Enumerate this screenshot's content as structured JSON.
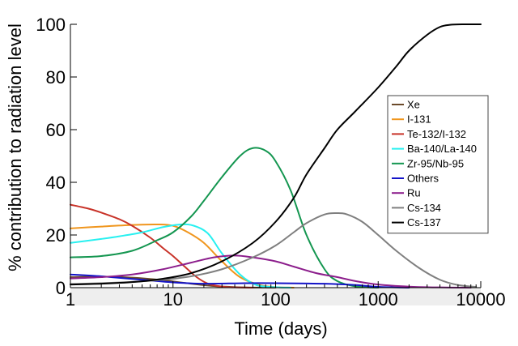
{
  "chart_data": {
    "type": "line",
    "title": "",
    "xlabel": "Time (days)",
    "ylabel": "% contribution to radiation level",
    "xscale": "log",
    "xlim": [
      1,
      10000
    ],
    "ylim": [
      0,
      100
    ],
    "xticks": [
      {
        "value": 1,
        "label": "1"
      },
      {
        "value": 10,
        "label": "10"
      },
      {
        "value": 100,
        "label": "100"
      },
      {
        "value": 1000,
        "label": "1000"
      },
      {
        "value": 10000,
        "label": "10000"
      }
    ],
    "yticks": [
      {
        "value": 0,
        "label": "0"
      },
      {
        "value": 20,
        "label": "20"
      },
      {
        "value": 40,
        "label": "40"
      },
      {
        "value": 60,
        "label": "60"
      },
      {
        "value": 80,
        "label": "80"
      },
      {
        "value": 100,
        "label": "100"
      }
    ],
    "legend_position": "right",
    "series": [
      {
        "name": "Xe",
        "color": "#6b4a2a",
        "x": [
          1,
          2,
          4,
          8,
          15,
          25,
          40,
          60,
          100
        ],
        "y": [
          4,
          4.2,
          3.8,
          2.8,
          1.5,
          0.6,
          0.2,
          0.05,
          0
        ]
      },
      {
        "name": "I-131",
        "color": "#f0961e",
        "x": [
          1,
          2,
          4,
          7,
          10,
          14,
          20,
          30,
          45,
          70,
          100,
          150
        ],
        "y": [
          22.5,
          23.2,
          23.8,
          24,
          23.5,
          21,
          17,
          10,
          4,
          1,
          0.2,
          0
        ]
      },
      {
        "name": "Te-132/I-132",
        "color": "#c83228",
        "x": [
          1,
          1.5,
          2,
          3,
          4,
          6,
          8,
          10,
          13,
          17,
          22,
          30,
          40,
          60
        ],
        "y": [
          31.5,
          30,
          28.5,
          26,
          23.5,
          19,
          15,
          12,
          8,
          4,
          1.5,
          0.4,
          0.1,
          0
        ]
      },
      {
        "name": "Ba-140/La-140",
        "color": "#28f0f0",
        "x": [
          1,
          2,
          3,
          5,
          8,
          12,
          16,
          22,
          30,
          45,
          65,
          100,
          140
        ],
        "y": [
          17,
          18.5,
          19.5,
          21,
          23,
          24,
          23.5,
          20.5,
          13,
          5,
          1,
          0.2,
          0
        ]
      },
      {
        "name": "Zr-95/Nb-95",
        "color": "#149650",
        "x": [
          1,
          2,
          4,
          7,
          10,
          15,
          20,
          30,
          45,
          60,
          80,
          100,
          140,
          200,
          300,
          400,
          600,
          1000
        ],
        "y": [
          11.5,
          12,
          14,
          18,
          21,
          27,
          33,
          42,
          50,
          53,
          52,
          48,
          37,
          20,
          7,
          2.5,
          0.5,
          0
        ]
      },
      {
        "name": "Others",
        "color": "#1414c8",
        "x": [
          1,
          2,
          5,
          10,
          20,
          50,
          100,
          300,
          600,
          1000,
          2000
        ],
        "y": [
          5,
          4.3,
          3,
          2,
          1.5,
          1.7,
          1.7,
          1.5,
          1,
          0.3,
          0
        ]
      },
      {
        "name": "Ru",
        "color": "#8c1e8c",
        "x": [
          1,
          2,
          4,
          8,
          15,
          25,
          40,
          60,
          100,
          150,
          250,
          400,
          600,
          1000,
          2000,
          4000,
          8000
        ],
        "y": [
          3.5,
          4,
          5,
          7,
          9.5,
          11.5,
          12.2,
          11.5,
          10,
          8,
          5.5,
          4,
          2.5,
          1.2,
          0.4,
          0.1,
          0
        ]
      },
      {
        "name": "Cs-134",
        "color": "#7f7f7f",
        "x": [
          1,
          2,
          4,
          8,
          15,
          30,
          60,
          100,
          150,
          200,
          300,
          400,
          500,
          700,
          1000,
          1500,
          2500,
          4000,
          6000,
          9000
        ],
        "y": [
          1.4,
          1.7,
          2.2,
          3,
          4.3,
          7,
          11.5,
          16,
          21,
          24.5,
          27.8,
          28.3,
          27.8,
          25,
          20,
          14,
          7.5,
          3,
          1,
          0.3
        ]
      },
      {
        "name": "Cs-137",
        "color": "#000000",
        "x": [
          1,
          2,
          4,
          8,
          15,
          30,
          60,
          100,
          150,
          200,
          300,
          400,
          600,
          1000,
          1500,
          2000,
          3000,
          4000,
          5000,
          7000,
          10000
        ],
        "y": [
          1.2,
          1.5,
          2.1,
          3.4,
          5.5,
          10,
          17,
          25,
          34,
          43,
          53,
          60,
          67,
          76,
          84,
          90,
          96,
          99,
          99.8,
          100,
          100
        ]
      }
    ]
  }
}
